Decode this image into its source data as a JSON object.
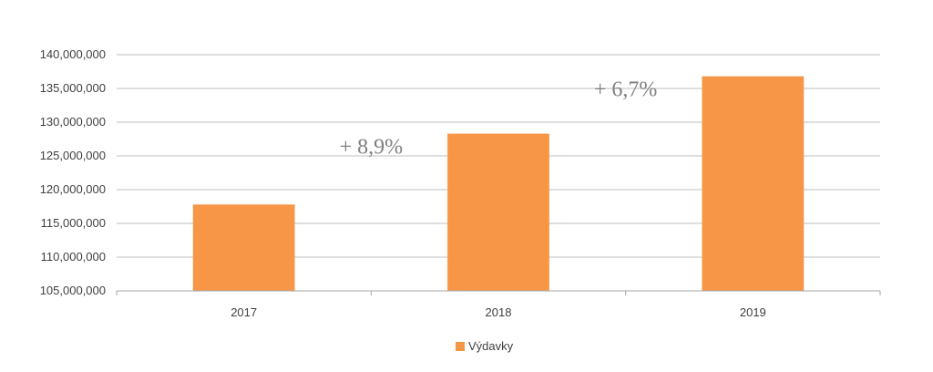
{
  "chart_data": {
    "type": "bar",
    "categories": [
      "2017",
      "2018",
      "2019"
    ],
    "series": [
      {
        "name": "Výdavky",
        "values": [
          117800000,
          128300000,
          136800000
        ],
        "color": "#F79646"
      }
    ],
    "ylim": [
      105000000,
      140000000
    ],
    "yticks": [
      105000000,
      110000000,
      115000000,
      120000000,
      125000000,
      130000000,
      135000000,
      140000000
    ],
    "ytick_labels": [
      "105,000,000",
      "110,000,000",
      "115,000,000",
      "120,000,000",
      "125,000,000",
      "130,000,000",
      "135,000,000",
      "140,000,000"
    ],
    "grid": true,
    "legend_position": "bottom",
    "annotations": [
      {
        "text": "+ 8,9%",
        "between": [
          "2017",
          "2018"
        ]
      },
      {
        "text": "+ 6,7%",
        "between": [
          "2018",
          "2019"
        ]
      }
    ]
  },
  "legend": {
    "label": "Výdavky",
    "color": "#F79646"
  }
}
